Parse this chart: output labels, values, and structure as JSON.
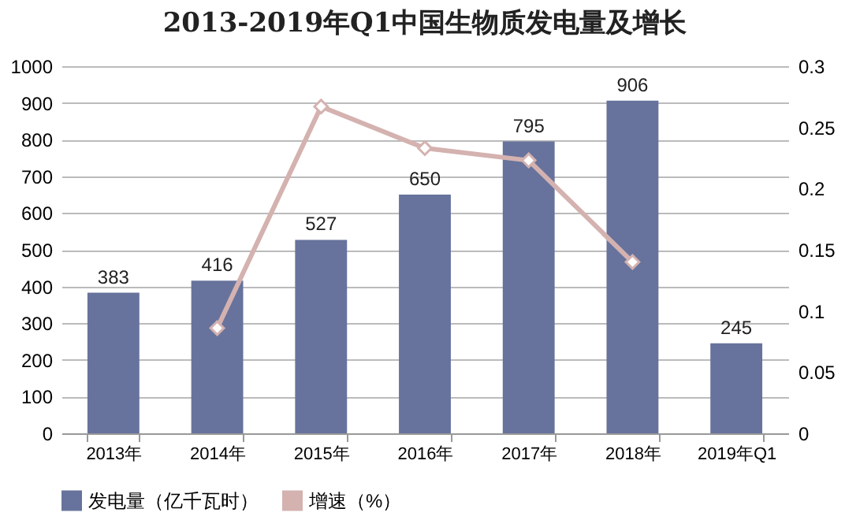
{
  "chart_data": {
    "type": "bar",
    "title": "2013-2019年Q1中国生物质发电量及增长",
    "categories": [
      "2013年",
      "2014年",
      "2015年",
      "2016年",
      "2017年",
      "2018年",
      "2019年Q1"
    ],
    "series": [
      {
        "name": "发电量（亿千瓦时）",
        "color": "#67739c",
        "values": [
          383,
          416,
          527,
          650,
          795,
          906,
          245
        ],
        "value_labels": [
          "383",
          "416",
          "527",
          "650",
          "795",
          "906",
          "245"
        ]
      },
      {
        "name": "增速（%）",
        "type": "line",
        "axis": "y2",
        "color": "#d4b2b0",
        "marker": "diamond",
        "values": [
          null,
          0.086,
          0.267,
          0.233,
          0.223,
          0.14,
          null
        ]
      }
    ],
    "ylim": [
      0,
      1000
    ],
    "yticks": [
      0,
      100,
      200,
      300,
      400,
      500,
      600,
      700,
      800,
      900,
      1000
    ],
    "y2lim": [
      0,
      0.3
    ],
    "y2ticks": [
      0,
      0.05,
      0.1,
      0.15,
      0.2,
      0.25,
      0.3
    ],
    "grid": "y",
    "legend": "bottom"
  }
}
